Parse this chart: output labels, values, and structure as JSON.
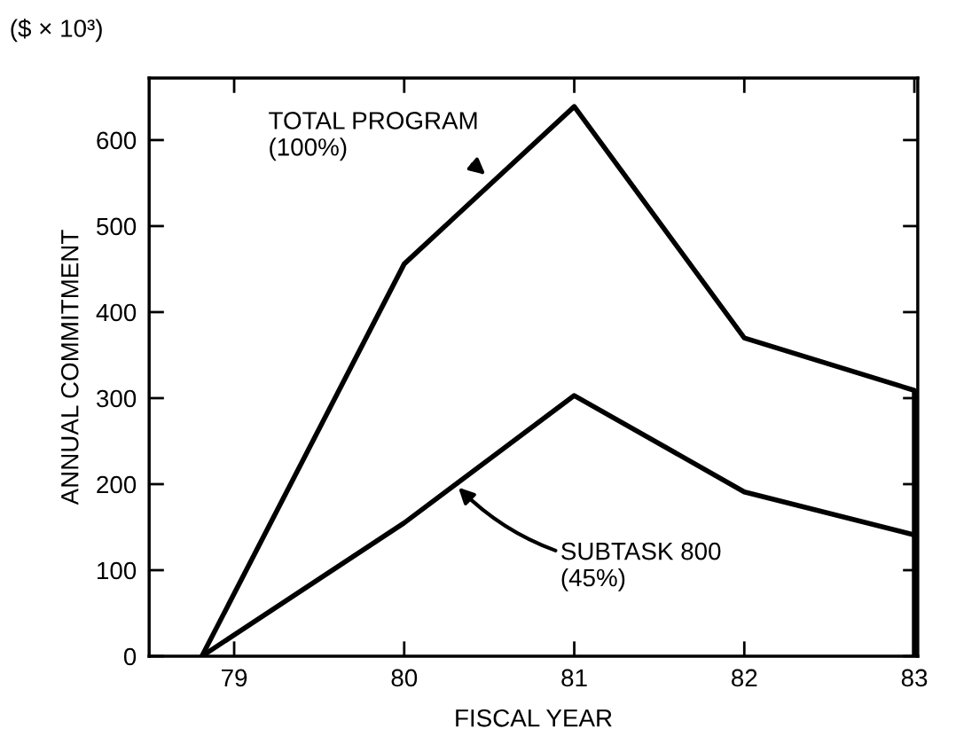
{
  "chart_data": {
    "type": "line",
    "xlabel": "FISCAL YEAR",
    "ylabel": "ANNUAL COMMITMENT",
    "xlim": [
      78.5,
      83.02
    ],
    "ylim": [
      0,
      672
    ],
    "xticks": [
      79,
      80,
      81,
      82,
      83
    ],
    "yticks": [
      0,
      100,
      200,
      300,
      400,
      500,
      600
    ],
    "series": [
      {
        "color": "#000000",
        "x": [
          78.81,
          80,
          81,
          82,
          83,
          83
        ],
        "values": [
          0,
          456,
          639,
          370,
          309,
          0
        ]
      },
      {
        "color": "#000000",
        "x": [
          78.81,
          80,
          81,
          82,
          83
        ],
        "values": [
          0,
          155,
          303,
          191,
          141
        ]
      }
    ],
    "annotations": [
      "($ × 10³)",
      "TOTAL PROGRAM\n(100%)",
      "SUBTASK 800\n(45%)"
    ],
    "grid": false,
    "legend": false,
    "marker": "none",
    "line_style": "solid"
  }
}
